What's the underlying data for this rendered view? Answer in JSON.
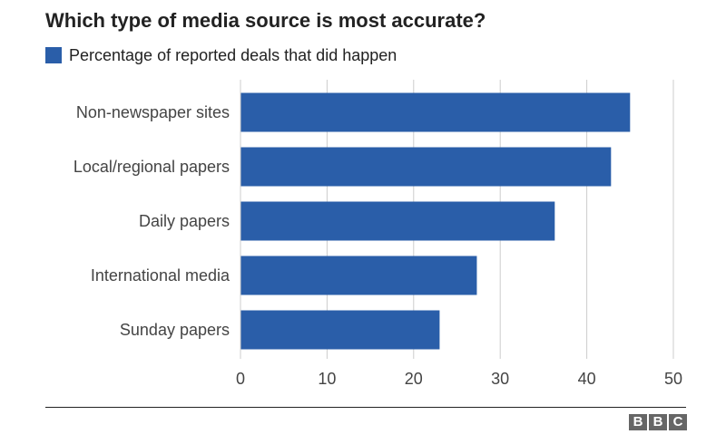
{
  "title": "Which type of media source is most accurate?",
  "legend": {
    "label": "Percentage of reported deals that did happen"
  },
  "colors": {
    "bar": "#2a5ea9",
    "grid": "#cccccc",
    "text": "#444444"
  },
  "chart_data": {
    "type": "bar",
    "orientation": "horizontal",
    "title": "Which type of media source is most accurate?",
    "categories": [
      "Non-newspaper sites",
      "Local/regional papers",
      "Daily papers",
      "International media",
      "Sunday papers"
    ],
    "series": [
      {
        "name": "Percentage of reported deals that did happen",
        "values": [
          45,
          42.8,
          36.3,
          27.3,
          23
        ]
      }
    ],
    "xlim": [
      0,
      50
    ],
    "xticks": [
      0,
      10,
      20,
      30,
      40,
      50
    ],
    "grid": true,
    "legend_position": "top-left"
  },
  "logo": {
    "letters": [
      "B",
      "B",
      "C"
    ]
  }
}
